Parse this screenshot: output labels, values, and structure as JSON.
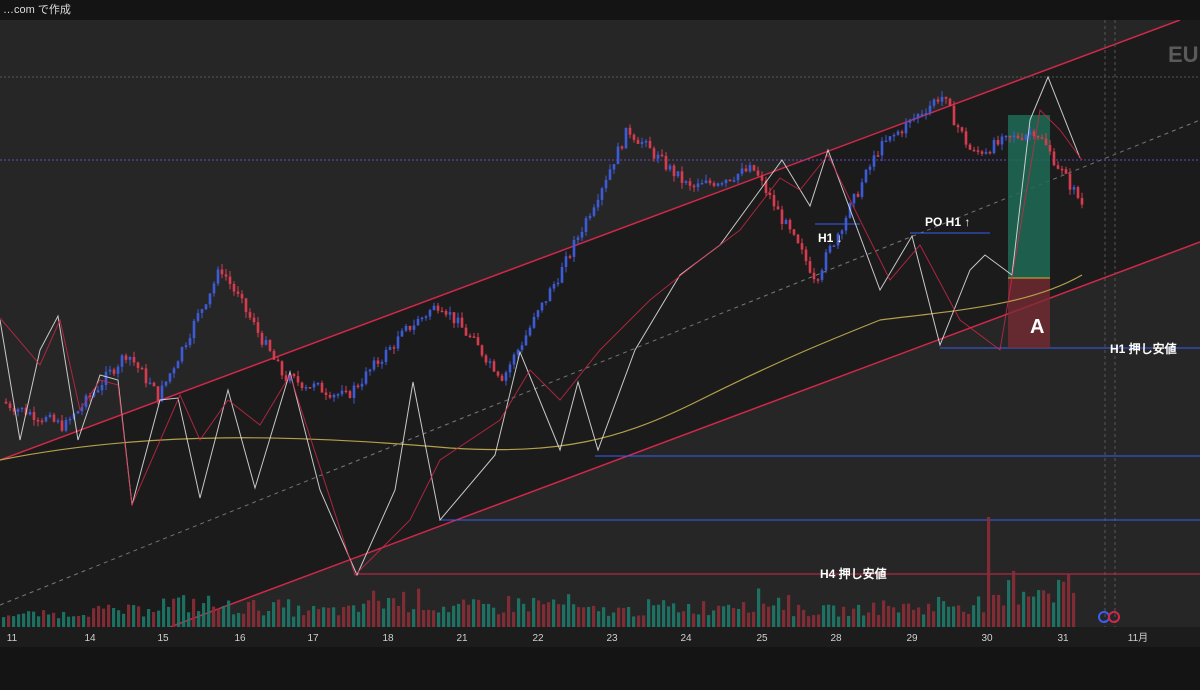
{
  "header": {
    "title": "…com で作成"
  },
  "symbol_label": "EU",
  "colors": {
    "background": "#202020",
    "channel_fill": "#1b1b1b",
    "channel_line": "#d0284a",
    "candle_up": "#3d5bd6",
    "candle_down": "#d63c4e",
    "ma": "#b4a04a",
    "zigzag_white": "#e6e6e6",
    "support_line": "#3b5ef0",
    "volume_up": "#1d7a6a",
    "volume_down": "#8a2e37",
    "long_profit": "#1d6a55",
    "long_loss": "#7a2c34"
  },
  "annotations": {
    "h1_down": "H1 ↓",
    "po_h1_up": "PO H1 ↑",
    "h1_pullback": "H1 押し安値",
    "h4_pullback": "H4 押し安値",
    "marker_a": "A"
  },
  "chart_data": {
    "type": "candlestick",
    "x_ticks": [
      "11",
      "14",
      "15",
      "16",
      "17",
      "18",
      "21",
      "22",
      "23",
      "24",
      "25",
      "28",
      "29",
      "30",
      "31",
      "11月"
    ],
    "price_path": [
      {
        "t": 0,
        "v": 0.35
      },
      {
        "t": 2,
        "v": 0.3
      },
      {
        "t": 4,
        "v": 0.45
      },
      {
        "t": 5,
        "v": 0.36
      },
      {
        "t": 7,
        "v": 0.62
      },
      {
        "t": 9,
        "v": 0.4
      },
      {
        "t": 11,
        "v": 0.36
      },
      {
        "t": 13,
        "v": 0.5
      },
      {
        "t": 14,
        "v": 0.55
      },
      {
        "t": 16,
        "v": 0.4
      },
      {
        "t": 18,
        "v": 0.63
      },
      {
        "t": 20,
        "v": 0.9
      },
      {
        "t": 22,
        "v": 0.78
      },
      {
        "t": 24,
        "v": 0.82
      },
      {
        "t": 26,
        "v": 0.6
      },
      {
        "t": 28,
        "v": 0.86
      },
      {
        "t": 30,
        "v": 0.97
      },
      {
        "t": 31,
        "v": 0.85
      },
      {
        "t": 33,
        "v": 0.9
      },
      {
        "t": 34.5,
        "v": 0.75
      }
    ],
    "volume_spikes": [
      0.2,
      0.3,
      0.5,
      0.4,
      0.3,
      0.6,
      0.4,
      0.5,
      0.3,
      0.4,
      0.6,
      0.3,
      0.4,
      0.5,
      1.0
    ]
  },
  "footer": {
    "icon": "replay-icon"
  }
}
